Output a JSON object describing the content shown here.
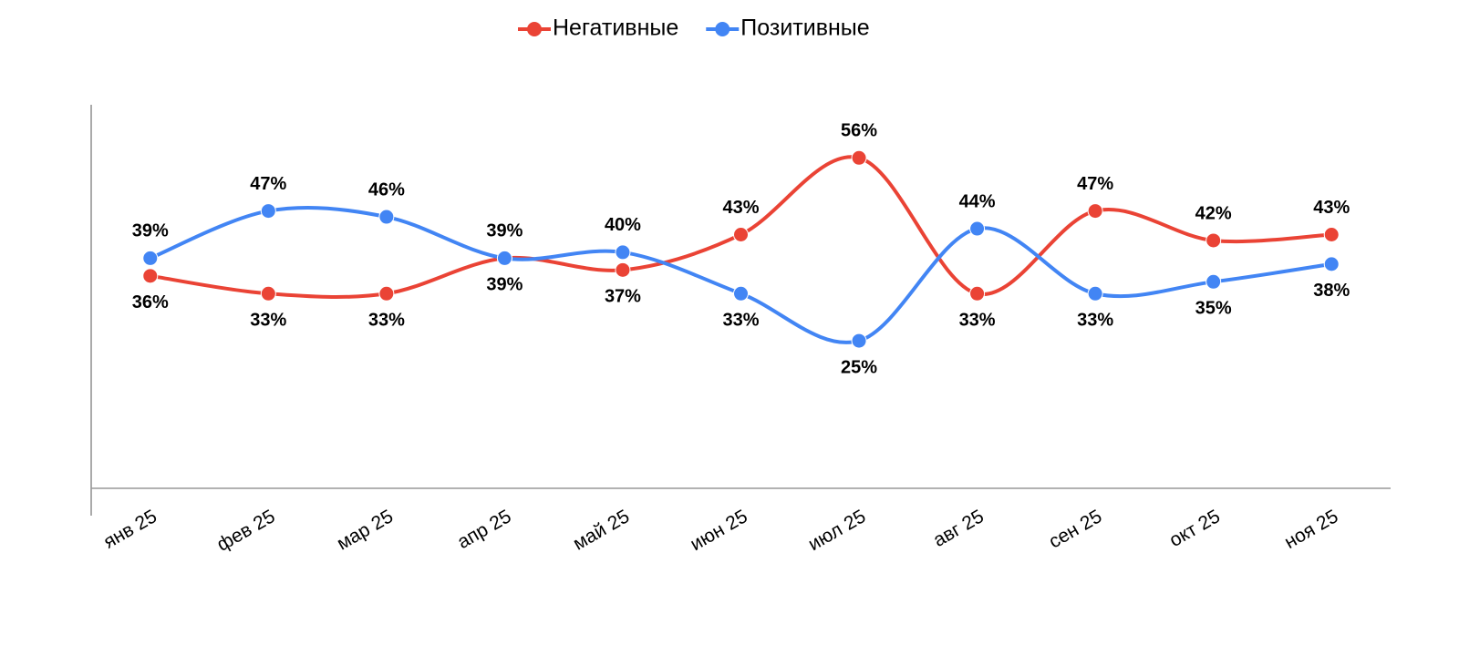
{
  "chart_data": {
    "type": "line",
    "categories": [
      "янв 25",
      "фев 25",
      "мар 25",
      "апр 25",
      "май 25",
      "июн 25",
      "июл 25",
      "авг 25",
      "сен 25",
      "окт 25",
      "ноя 25"
    ],
    "series": [
      {
        "name": "Негативные",
        "color": "#ea4335",
        "values": [
          36,
          33,
          33,
          39,
          37,
          43,
          56,
          33,
          47,
          42,
          43
        ],
        "value_labels": [
          "36%",
          "33%",
          "33%",
          "39%",
          "37%",
          "43%",
          "56%",
          "33%",
          "47%",
          "42%",
          "43%"
        ]
      },
      {
        "name": "Позитивные",
        "color": "#4285f4",
        "values": [
          39,
          47,
          46,
          39,
          40,
          33,
          25,
          44,
          33,
          35,
          38
        ],
        "value_labels": [
          "39%",
          "47%",
          "46%",
          "39%",
          "40%",
          "33%",
          "25%",
          "44%",
          "33%",
          "35%",
          "38%"
        ]
      }
    ],
    "ylim": [
      0,
      65
    ],
    "smooth": true
  }
}
